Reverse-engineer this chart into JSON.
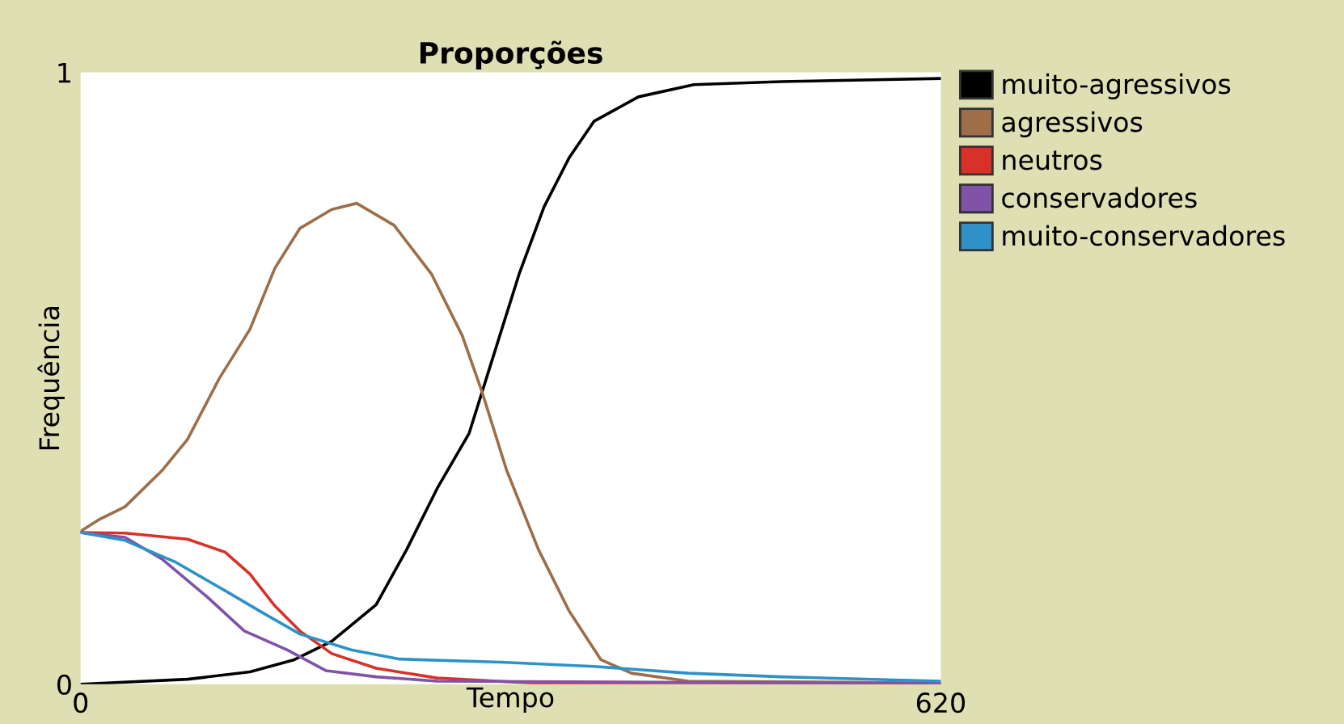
{
  "chart_data": {
    "type": "line",
    "title": "Proporções",
    "xlabel": "Tempo",
    "ylabel": "Frequência",
    "xlim": [
      0,
      620
    ],
    "ylim": [
      0,
      1
    ],
    "xticks": [
      0,
      620
    ],
    "yticks": [
      0,
      1
    ],
    "grid": false,
    "legend": "right",
    "series": [
      {
        "name": "muito-agressivos",
        "color": "#000000",
        "x": [
          0,
          77,
          122,
          154,
          181,
          213,
          235,
          257,
          280,
          298,
          316,
          334,
          352,
          370,
          402,
          442,
          505,
          620
        ],
        "values": [
          0,
          0.008,
          0.02,
          0.04,
          0.07,
          0.13,
          0.22,
          0.32,
          0.41,
          0.54,
          0.67,
          0.78,
          0.86,
          0.92,
          0.96,
          0.98,
          0.985,
          0.99
        ]
      },
      {
        "name": "agressivos",
        "color": "#9d6e48",
        "x": [
          0,
          14,
          32,
          59,
          77,
          100,
          122,
          140,
          158,
          181,
          199,
          226,
          253,
          275,
          289,
          307,
          330,
          352,
          375,
          397,
          438,
          620
        ],
        "values": [
          0.25,
          0.27,
          0.29,
          0.35,
          0.4,
          0.5,
          0.58,
          0.68,
          0.745,
          0.776,
          0.786,
          0.75,
          0.67,
          0.57,
          0.48,
          0.35,
          0.22,
          0.12,
          0.04,
          0.018,
          0.005,
          0.002
        ]
      },
      {
        "name": "neutros",
        "color": "#d73229",
        "x": [
          0,
          32,
          77,
          104,
          122,
          140,
          158,
          181,
          213,
          257,
          325,
          620
        ],
        "values": [
          0.248,
          0.247,
          0.237,
          0.216,
          0.18,
          0.128,
          0.087,
          0.05,
          0.026,
          0.01,
          0.002,
          0
        ]
      },
      {
        "name": "conservadores",
        "color": "#8053a8",
        "x": [
          0,
          32,
          59,
          91,
          118,
          149,
          177,
          213,
          257,
          620
        ],
        "values": [
          0.248,
          0.24,
          0.204,
          0.143,
          0.087,
          0.056,
          0.022,
          0.012,
          0.005,
          0.001
        ]
      },
      {
        "name": "muito-conservadores",
        "color": "#2e92c7",
        "x": [
          0,
          32,
          68,
          104,
          131,
          158,
          195,
          230,
          303,
          370,
          438,
          505,
          620
        ],
        "values": [
          0.248,
          0.235,
          0.2,
          0.153,
          0.117,
          0.082,
          0.056,
          0.041,
          0.036,
          0.029,
          0.018,
          0.012,
          0.005
        ]
      }
    ]
  }
}
